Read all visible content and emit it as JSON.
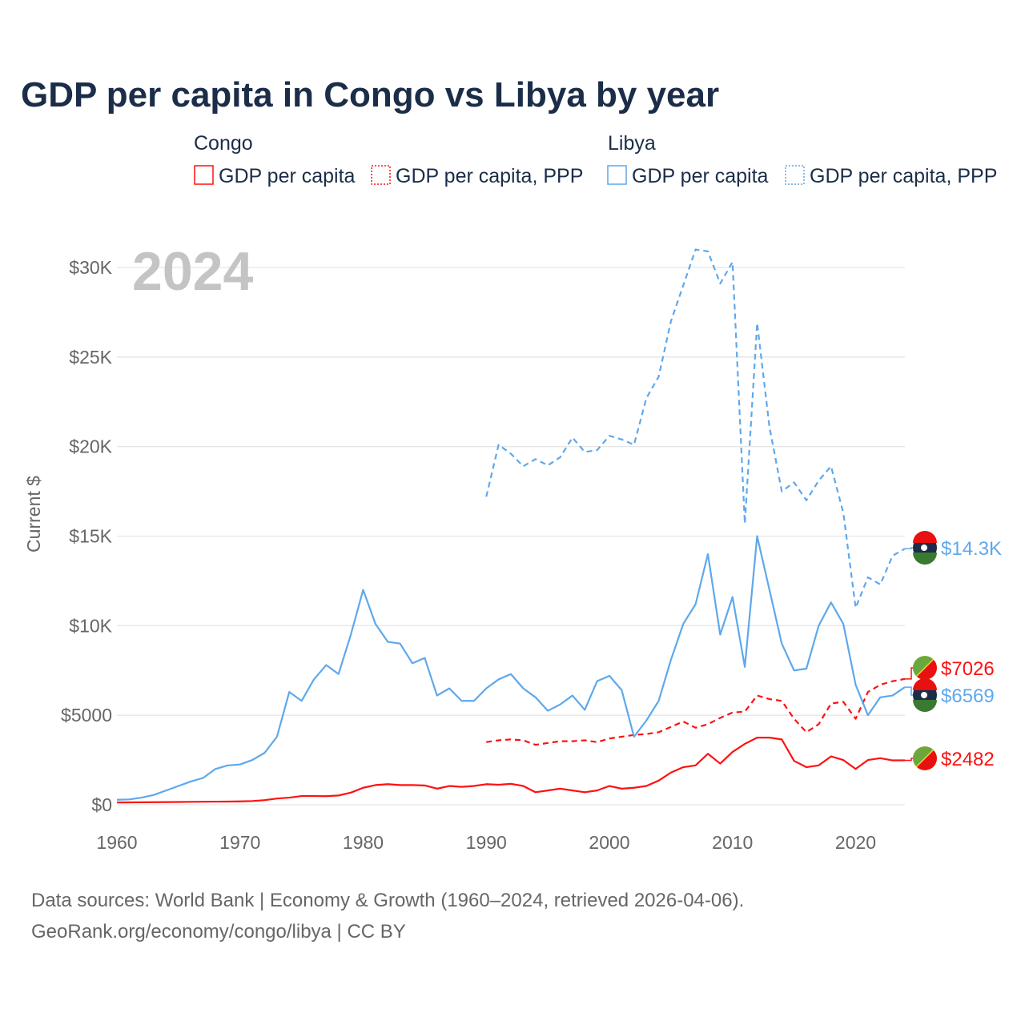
{
  "title": "GDP per capita in Congo vs Libya by year",
  "legend": {
    "groups": [
      {
        "name": "Congo",
        "items": [
          "GDP per capita",
          "GDP per capita, PPP"
        ]
      },
      {
        "name": "Libya",
        "items": [
          "GDP per capita",
          "GDP per capita, PPP"
        ]
      }
    ]
  },
  "year_overlay": "2024",
  "source_line1": "Data sources: World Bank | Economy & Growth (1960–2024, retrieved 2026-04-06).",
  "source_line2": "GeoRank.org/economy/congo/libya | CC BY",
  "colors": {
    "congo": "#ff1010",
    "libya": "#5ea8ec",
    "grid": "#e6e6e6"
  },
  "chart_data": {
    "type": "line",
    "title": "GDP per capita in Congo vs Libya by year",
    "xlabel": "",
    "ylabel": "Current $",
    "xlim": [
      1960,
      2024
    ],
    "ylim": [
      0,
      31000
    ],
    "x_ticks": [
      1960,
      1970,
      1980,
      1990,
      2000,
      2010,
      2020
    ],
    "x_tick_labels": [
      "1960",
      "1970",
      "1980",
      "1990",
      "2000",
      "2010",
      "2020"
    ],
    "y_ticks": [
      0,
      5000,
      10000,
      15000,
      20000,
      25000,
      30000
    ],
    "y_tick_labels": [
      "$0",
      "$5000",
      "$10K",
      "$15K",
      "$20K",
      "$25K",
      "$30K"
    ],
    "grid": true,
    "legend_position": "top",
    "series": [
      {
        "name": "Libya GDP per capita, PPP",
        "country": "Libya",
        "style": "dashed",
        "color": "#5ea8ec",
        "start": 1990,
        "end_label": "$14.3K",
        "values": [
          17200,
          20100,
          19600,
          18900,
          19300,
          18950,
          19400,
          20500,
          19700,
          19800,
          20600,
          20400,
          20100,
          22700,
          23900,
          27000,
          29000,
          31000,
          30900,
          29100,
          30300,
          15700,
          26900,
          21100,
          17500,
          18000,
          17000,
          18100,
          18900,
          16300,
          11000,
          12700,
          12300,
          13900,
          14300
        ]
      },
      {
        "name": "Congo GDP per capita, PPP",
        "country": "Congo",
        "style": "dashed",
        "color": "#ff1010",
        "start": 1990,
        "end_label": "$7026",
        "values": [
          3500,
          3600,
          3650,
          3600,
          3350,
          3450,
          3550,
          3550,
          3600,
          3500,
          3700,
          3800,
          3900,
          3950,
          4050,
          4350,
          4650,
          4300,
          4500,
          4850,
          5150,
          5200,
          6100,
          5900,
          5800,
          4800,
          4050,
          4500,
          5650,
          5750,
          4800,
          6300,
          6700,
          6900,
          7026
        ]
      },
      {
        "name": "Libya GDP per capita",
        "country": "Libya",
        "style": "solid",
        "color": "#5ea8ec",
        "start": 1960,
        "end_label": "$6569",
        "values": [
          280,
          300,
          400,
          550,
          800,
          1050,
          1300,
          1500,
          2000,
          2200,
          2250,
          2500,
          2900,
          3800,
          6300,
          5800,
          7000,
          7800,
          7300,
          9500,
          12000,
          10100,
          9100,
          9000,
          7900,
          8200,
          6100,
          6500,
          5800,
          5800,
          6500,
          7000,
          7300,
          6500,
          6000,
          5250,
          5600,
          6100,
          5300,
          6900,
          7200,
          6400,
          3800,
          4700,
          5800,
          8100,
          10100,
          11200,
          14000,
          9500,
          11600,
          7700,
          15000,
          12000,
          9000,
          7500,
          7600,
          10000,
          11300,
          10100,
          6700,
          5000,
          6000,
          6100,
          6569
        ]
      },
      {
        "name": "Congo GDP per capita",
        "country": "Congo",
        "style": "solid",
        "color": "#ff1010",
        "start": 1960,
        "end_label": "$2482",
        "values": [
          130,
          135,
          140,
          145,
          150,
          155,
          165,
          170,
          175,
          180,
          190,
          210,
          260,
          350,
          400,
          490,
          490,
          480,
          520,
          680,
          950,
          1100,
          1150,
          1100,
          1100,
          1080,
          900,
          1050,
          1000,
          1050,
          1150,
          1120,
          1170,
          1050,
          700,
          800,
          900,
          800,
          700,
          800,
          1050,
          900,
          950,
          1050,
          1350,
          1800,
          2100,
          2200,
          2850,
          2300,
          2950,
          3400,
          3750,
          3750,
          3650,
          2450,
          2100,
          2200,
          2700,
          2500,
          2000,
          2500,
          2600,
          2480,
          2482
        ]
      }
    ]
  }
}
